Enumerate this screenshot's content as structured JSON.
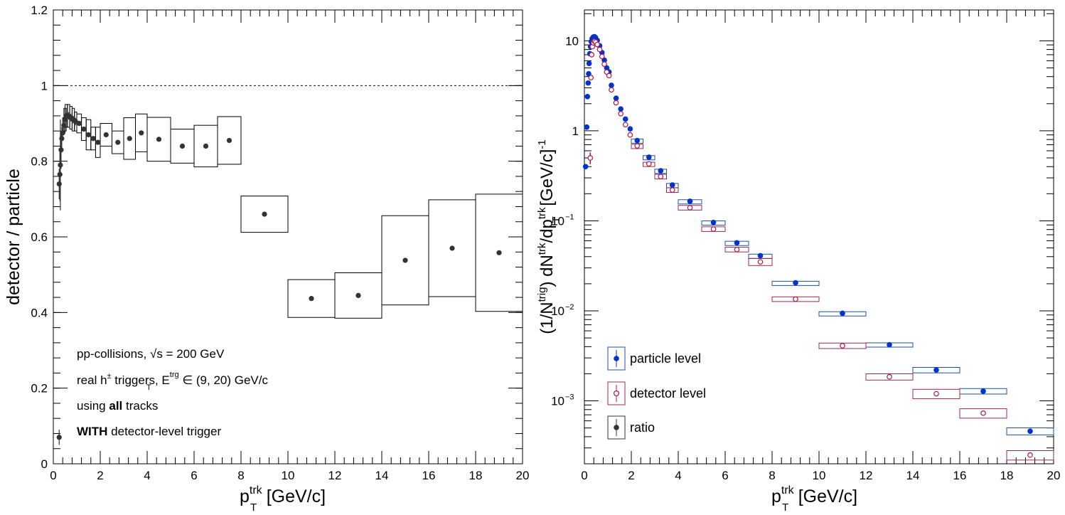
{
  "colors": {
    "ratio": "#333333",
    "particle": "#0033cc",
    "particle_box": "#1f4fa8",
    "detector": "#b0144a",
    "detector_box": "#a0284f"
  },
  "chart_data": [
    {
      "type": "scatter",
      "xlabel_main": "p",
      "xlabel_sup": "trk",
      "xlabel_sub": "T",
      "xlabel_unit": "[GeV/c]",
      "ylabel": "detector / particle",
      "xlim": [
        0,
        20
      ],
      "ylim": [
        0,
        1.2
      ],
      "x_ticks": [
        "0",
        "2",
        "4",
        "6",
        "8",
        "10",
        "12",
        "14",
        "16",
        "18",
        "20"
      ],
      "y_ticks": [
        "0",
        "0.2",
        "0.4",
        "0.6",
        "0.8",
        "1",
        "1.2"
      ],
      "reference_line": 1,
      "annotations": {
        "line1": "pp-collisions, √s = 200 GeV",
        "line2_pre": "real h",
        "line2_sup": "±",
        "line2_mid": " triggers, E",
        "line2_sup2": "trg",
        "line2_sub2": "T",
        "line2_post": " ∈ (9, 20) GeV/c",
        "line3_pre": "using ",
        "line3_bold": "all",
        "line3_post": " tracks",
        "line4_bold": "WITH",
        "line4_post": " detector-level trigger"
      },
      "series": [
        {
          "name": "ratio",
          "points": [
            {
              "x": 0.25,
              "y": 0.07,
              "err": 0.02,
              "hw": 0,
              "sys": 0
            },
            {
              "x": 0.25,
              "y": 0.74,
              "err": 0.04,
              "hw": 0,
              "sys": 0
            },
            {
              "x": 0.28,
              "y": 0.765,
              "err": 0.07,
              "hw": 0,
              "sys": 0
            },
            {
              "x": 0.3,
              "y": 0.79,
              "err": 0.12,
              "hw": 0,
              "sys": 0
            },
            {
              "x": 0.33,
              "y": 0.83,
              "err": 0.05,
              "hw": 0,
              "sys": 0
            },
            {
              "x": 0.36,
              "y": 0.86,
              "err": 0.03,
              "hw": 0,
              "sys": 0
            },
            {
              "x": 0.4,
              "y": 0.875,
              "err": 0.02,
              "hw": 0,
              "sys": 0
            },
            {
              "x": 0.45,
              "y": 0.895,
              "err": 0.02,
              "hw": 0.05,
              "sys": 0.02
            },
            {
              "x": 0.5,
              "y": 0.91,
              "err": 0.01,
              "hw": 0.05,
              "sys": 0.03
            },
            {
              "x": 0.55,
              "y": 0.92,
              "err": 0.01,
              "hw": 0.05,
              "sys": 0.03
            },
            {
              "x": 0.65,
              "y": 0.92,
              "err": 0.01,
              "hw": 0.05,
              "sys": 0.03
            },
            {
              "x": 0.75,
              "y": 0.915,
              "err": 0.01,
              "hw": 0.05,
              "sys": 0.03
            },
            {
              "x": 0.85,
              "y": 0.91,
              "err": 0.01,
              "hw": 0.05,
              "sys": 0.03
            },
            {
              "x": 0.95,
              "y": 0.905,
              "err": 0.01,
              "hw": 0.05,
              "sys": 0.025
            },
            {
              "x": 1.1,
              "y": 0.9,
              "err": 0.005,
              "hw": 0.1,
              "sys": 0.025
            },
            {
              "x": 1.3,
              "y": 0.885,
              "err": 0.005,
              "hw": 0.1,
              "sys": 0.03
            },
            {
              "x": 1.5,
              "y": 0.87,
              "err": 0.005,
              "hw": 0.1,
              "sys": 0.04
            },
            {
              "x": 1.7,
              "y": 0.86,
              "err": 0.005,
              "hw": 0.1,
              "sys": 0.03
            },
            {
              "x": 1.9,
              "y": 0.85,
              "err": 0.005,
              "hw": 0.1,
              "sys": 0.04
            },
            {
              "x": 2.25,
              "y": 0.87,
              "err": 0.005,
              "hw": 0.25,
              "sys": 0.03
            },
            {
              "x": 2.75,
              "y": 0.85,
              "err": 0.005,
              "hw": 0.25,
              "sys": 0.03
            },
            {
              "x": 3.25,
              "y": 0.86,
              "err": 0.005,
              "hw": 0.25,
              "sys": 0.055
            },
            {
              "x": 3.75,
              "y": 0.875,
              "err": 0.005,
              "hw": 0.25,
              "sys": 0.05
            },
            {
              "x": 4.5,
              "y": 0.858,
              "err": 0.005,
              "hw": 0.5,
              "sys": 0.058
            },
            {
              "x": 5.5,
              "y": 0.84,
              "err": 0.005,
              "hw": 0.5,
              "sys": 0.045
            },
            {
              "x": 6.5,
              "y": 0.84,
              "err": 0.005,
              "hw": 0.5,
              "sys": 0.055
            },
            {
              "x": 7.5,
              "y": 0.855,
              "err": 0.005,
              "hw": 0.5,
              "sys": 0.063
            },
            {
              "x": 9,
              "y": 0.66,
              "err": 0.005,
              "hw": 1,
              "sys": 0.048
            },
            {
              "x": 11,
              "y": 0.437,
              "err": 0.005,
              "hw": 1,
              "sys": 0.05
            },
            {
              "x": 13,
              "y": 0.445,
              "err": 0.005,
              "hw": 1,
              "sys": 0.06
            },
            {
              "x": 15,
              "y": 0.538,
              "err": 0.005,
              "hw": 1,
              "sys": 0.118
            },
            {
              "x": 17,
              "y": 0.57,
              "err": 0.005,
              "hw": 1,
              "sys": 0.128
            },
            {
              "x": 19,
              "y": 0.558,
              "err": 0.005,
              "hw": 1,
              "sys": 0.155
            }
          ]
        }
      ]
    },
    {
      "type": "scatter",
      "log_y": true,
      "xlabel_main": "p",
      "xlabel_sup": "trk",
      "xlabel_sub": "T",
      "xlabel_unit": "[GeV/c]",
      "ylabel_parts": [
        "(1/N",
        "trig",
        ") dN",
        "trk",
        "/dp",
        "trk",
        "T",
        " [GeV/c]",
        "-1"
      ],
      "xlim": [
        0,
        20
      ],
      "ylim": [
        0.0002,
        22
      ],
      "x_ticks": [
        "0",
        "2",
        "4",
        "6",
        "8",
        "10",
        "12",
        "14",
        "16",
        "18",
        "20"
      ],
      "y_tick_labels": [
        {
          "value": 10,
          "label": "10"
        },
        {
          "value": 1,
          "label": "1"
        },
        {
          "value": 0.1,
          "label": "10",
          "exp": "−1"
        },
        {
          "value": 0.01,
          "label": "10",
          "exp": "−2"
        },
        {
          "value": 0.001,
          "label": "10",
          "exp": "−3"
        }
      ],
      "legend_position": "bottom-left",
      "series": [
        {
          "name": "particle level",
          "points": [
            {
              "x": 0.05,
              "y": 0.4,
              "hw": 0,
              "sys": 0
            },
            {
              "x": 0.1,
              "y": 1.1,
              "hw": 0,
              "sys": 0
            },
            {
              "x": 0.13,
              "y": 2.4,
              "hw": 0,
              "sys": 0
            },
            {
              "x": 0.16,
              "y": 3.4,
              "hw": 0,
              "sys": 0
            },
            {
              "x": 0.18,
              "y": 4.3,
              "hw": 0,
              "sys": 0
            },
            {
              "x": 0.2,
              "y": 5.6,
              "hw": 0,
              "sys": 0
            },
            {
              "x": 0.23,
              "y": 7.2,
              "hw": 0,
              "sys": 0
            },
            {
              "x": 0.26,
              "y": 8.6,
              "hw": 0,
              "sys": 0
            },
            {
              "x": 0.29,
              "y": 9.8,
              "hw": 0,
              "sys": 0
            },
            {
              "x": 0.33,
              "y": 10.6,
              "hw": 0,
              "sys": 0
            },
            {
              "x": 0.38,
              "y": 11.0,
              "hw": 0,
              "sys": 0
            },
            {
              "x": 0.43,
              "y": 11.1,
              "hw": 0,
              "sys": 0
            },
            {
              "x": 0.48,
              "y": 10.8,
              "hw": 0,
              "sys": 0
            },
            {
              "x": 0.55,
              "y": 10.1,
              "hw": 0,
              "sys": 0
            },
            {
              "x": 0.65,
              "y": 8.8,
              "hw": 0,
              "sys": 0
            },
            {
              "x": 0.75,
              "y": 7.4,
              "hw": 0,
              "sys": 0
            },
            {
              "x": 0.85,
              "y": 6.1,
              "hw": 0,
              "sys": 0
            },
            {
              "x": 0.95,
              "y": 5.0,
              "hw": 0,
              "sys": 0
            },
            {
              "x": 1.05,
              "y": 4.5,
              "hw": 0,
              "sys": 0
            },
            {
              "x": 1.15,
              "y": 3.2,
              "hw": 0,
              "sys": 0
            },
            {
              "x": 1.35,
              "y": 2.3,
              "hw": 0,
              "sys": 0
            },
            {
              "x": 1.55,
              "y": 1.75,
              "hw": 0,
              "sys": 0
            },
            {
              "x": 1.75,
              "y": 1.35,
              "hw": 0,
              "sys": 0
            },
            {
              "x": 1.95,
              "y": 1.05,
              "hw": 0,
              "sys": 0
            },
            {
              "x": 2.25,
              "y": 0.78,
              "hw": 0.25,
              "sys": 0.04
            },
            {
              "x": 2.75,
              "y": 0.51,
              "hw": 0.25,
              "sys": 0.04
            },
            {
              "x": 3.25,
              "y": 0.36,
              "hw": 0.25,
              "sys": 0.04
            },
            {
              "x": 3.75,
              "y": 0.25,
              "hw": 0.25,
              "sys": 0.04
            },
            {
              "x": 4.5,
              "y": 0.165,
              "hw": 0.5,
              "sys": 0.04
            },
            {
              "x": 5.5,
              "y": 0.096,
              "hw": 0.5,
              "sys": 0.04
            },
            {
              "x": 6.5,
              "y": 0.057,
              "hw": 0.5,
              "sys": 0.04
            },
            {
              "x": 7.5,
              "y": 0.041,
              "hw": 0.5,
              "sys": 0.04
            },
            {
              "x": 9,
              "y": 0.0205,
              "hw": 1,
              "sys": 0.04
            },
            {
              "x": 11,
              "y": 0.0094,
              "hw": 1,
              "sys": 0.04
            },
            {
              "x": 13,
              "y": 0.0042,
              "hw": 1,
              "sys": 0.05
            },
            {
              "x": 15,
              "y": 0.0022,
              "hw": 1,
              "sys": 0.07
            },
            {
              "x": 17,
              "y": 0.00128,
              "hw": 1,
              "sys": 0.07
            },
            {
              "x": 19,
              "y": 0.00046,
              "hw": 1,
              "sys": 0.09
            }
          ]
        },
        {
          "name": "detector level",
          "points": [
            {
              "x": 0.25,
              "y": 0.5,
              "hw": 0,
              "sys": 0,
              "err": 0.15
            },
            {
              "x": 0.28,
              "y": 3.9,
              "hw": 0,
              "sys": 0
            },
            {
              "x": 0.31,
              "y": 7.0,
              "hw": 0,
              "sys": 0
            },
            {
              "x": 0.34,
              "y": 8.6,
              "hw": 0,
              "sys": 0
            },
            {
              "x": 0.38,
              "y": 9.5,
              "hw": 0,
              "sys": 0
            },
            {
              "x": 0.43,
              "y": 9.9,
              "hw": 0,
              "sys": 0
            },
            {
              "x": 0.48,
              "y": 9.7,
              "hw": 0,
              "sys": 0
            },
            {
              "x": 0.55,
              "y": 9.1,
              "hw": 0,
              "sys": 0
            },
            {
              "x": 0.65,
              "y": 8.0,
              "hw": 0,
              "sys": 0
            },
            {
              "x": 0.75,
              "y": 6.7,
              "hw": 0,
              "sys": 0
            },
            {
              "x": 0.85,
              "y": 5.5,
              "hw": 0,
              "sys": 0
            },
            {
              "x": 0.95,
              "y": 4.5,
              "hw": 0,
              "sys": 0
            },
            {
              "x": 1.05,
              "y": 4.1,
              "hw": 0,
              "sys": 0
            },
            {
              "x": 1.15,
              "y": 2.85,
              "hw": 0,
              "sys": 0
            },
            {
              "x": 1.35,
              "y": 2.05,
              "hw": 0,
              "sys": 0
            },
            {
              "x": 1.55,
              "y": 1.55,
              "hw": 0,
              "sys": 0
            },
            {
              "x": 1.75,
              "y": 1.17,
              "hw": 0,
              "sys": 0
            },
            {
              "x": 1.95,
              "y": 0.9,
              "hw": 0,
              "sys": 0
            },
            {
              "x": 2.25,
              "y": 0.68,
              "hw": 0.25,
              "sys": 0.04
            },
            {
              "x": 2.75,
              "y": 0.43,
              "hw": 0.25,
              "sys": 0.04
            },
            {
              "x": 3.25,
              "y": 0.31,
              "hw": 0.25,
              "sys": 0.06
            },
            {
              "x": 3.75,
              "y": 0.22,
              "hw": 0.25,
              "sys": 0.06
            },
            {
              "x": 4.5,
              "y": 0.14,
              "hw": 0.5,
              "sys": 0.06
            },
            {
              "x": 5.5,
              "y": 0.081,
              "hw": 0.5,
              "sys": 0.06
            },
            {
              "x": 6.5,
              "y": 0.048,
              "hw": 0.5,
              "sys": 0.06
            },
            {
              "x": 7.5,
              "y": 0.035,
              "hw": 0.5,
              "sys": 0.09
            },
            {
              "x": 9,
              "y": 0.0135,
              "hw": 1,
              "sys": 0.06
            },
            {
              "x": 11,
              "y": 0.0041,
              "hw": 1,
              "sys": 0.07
            },
            {
              "x": 13,
              "y": 0.00185,
              "hw": 1,
              "sys": 0.08
            },
            {
              "x": 15,
              "y": 0.0012,
              "hw": 1,
              "sys": 0.12
            },
            {
              "x": 17,
              "y": 0.00073,
              "hw": 1,
              "sys": 0.12
            },
            {
              "x": 19,
              "y": 0.00025,
              "hw": 1,
              "sys": 0.12
            }
          ]
        },
        {
          "name": "ratio",
          "points": []
        }
      ]
    }
  ]
}
